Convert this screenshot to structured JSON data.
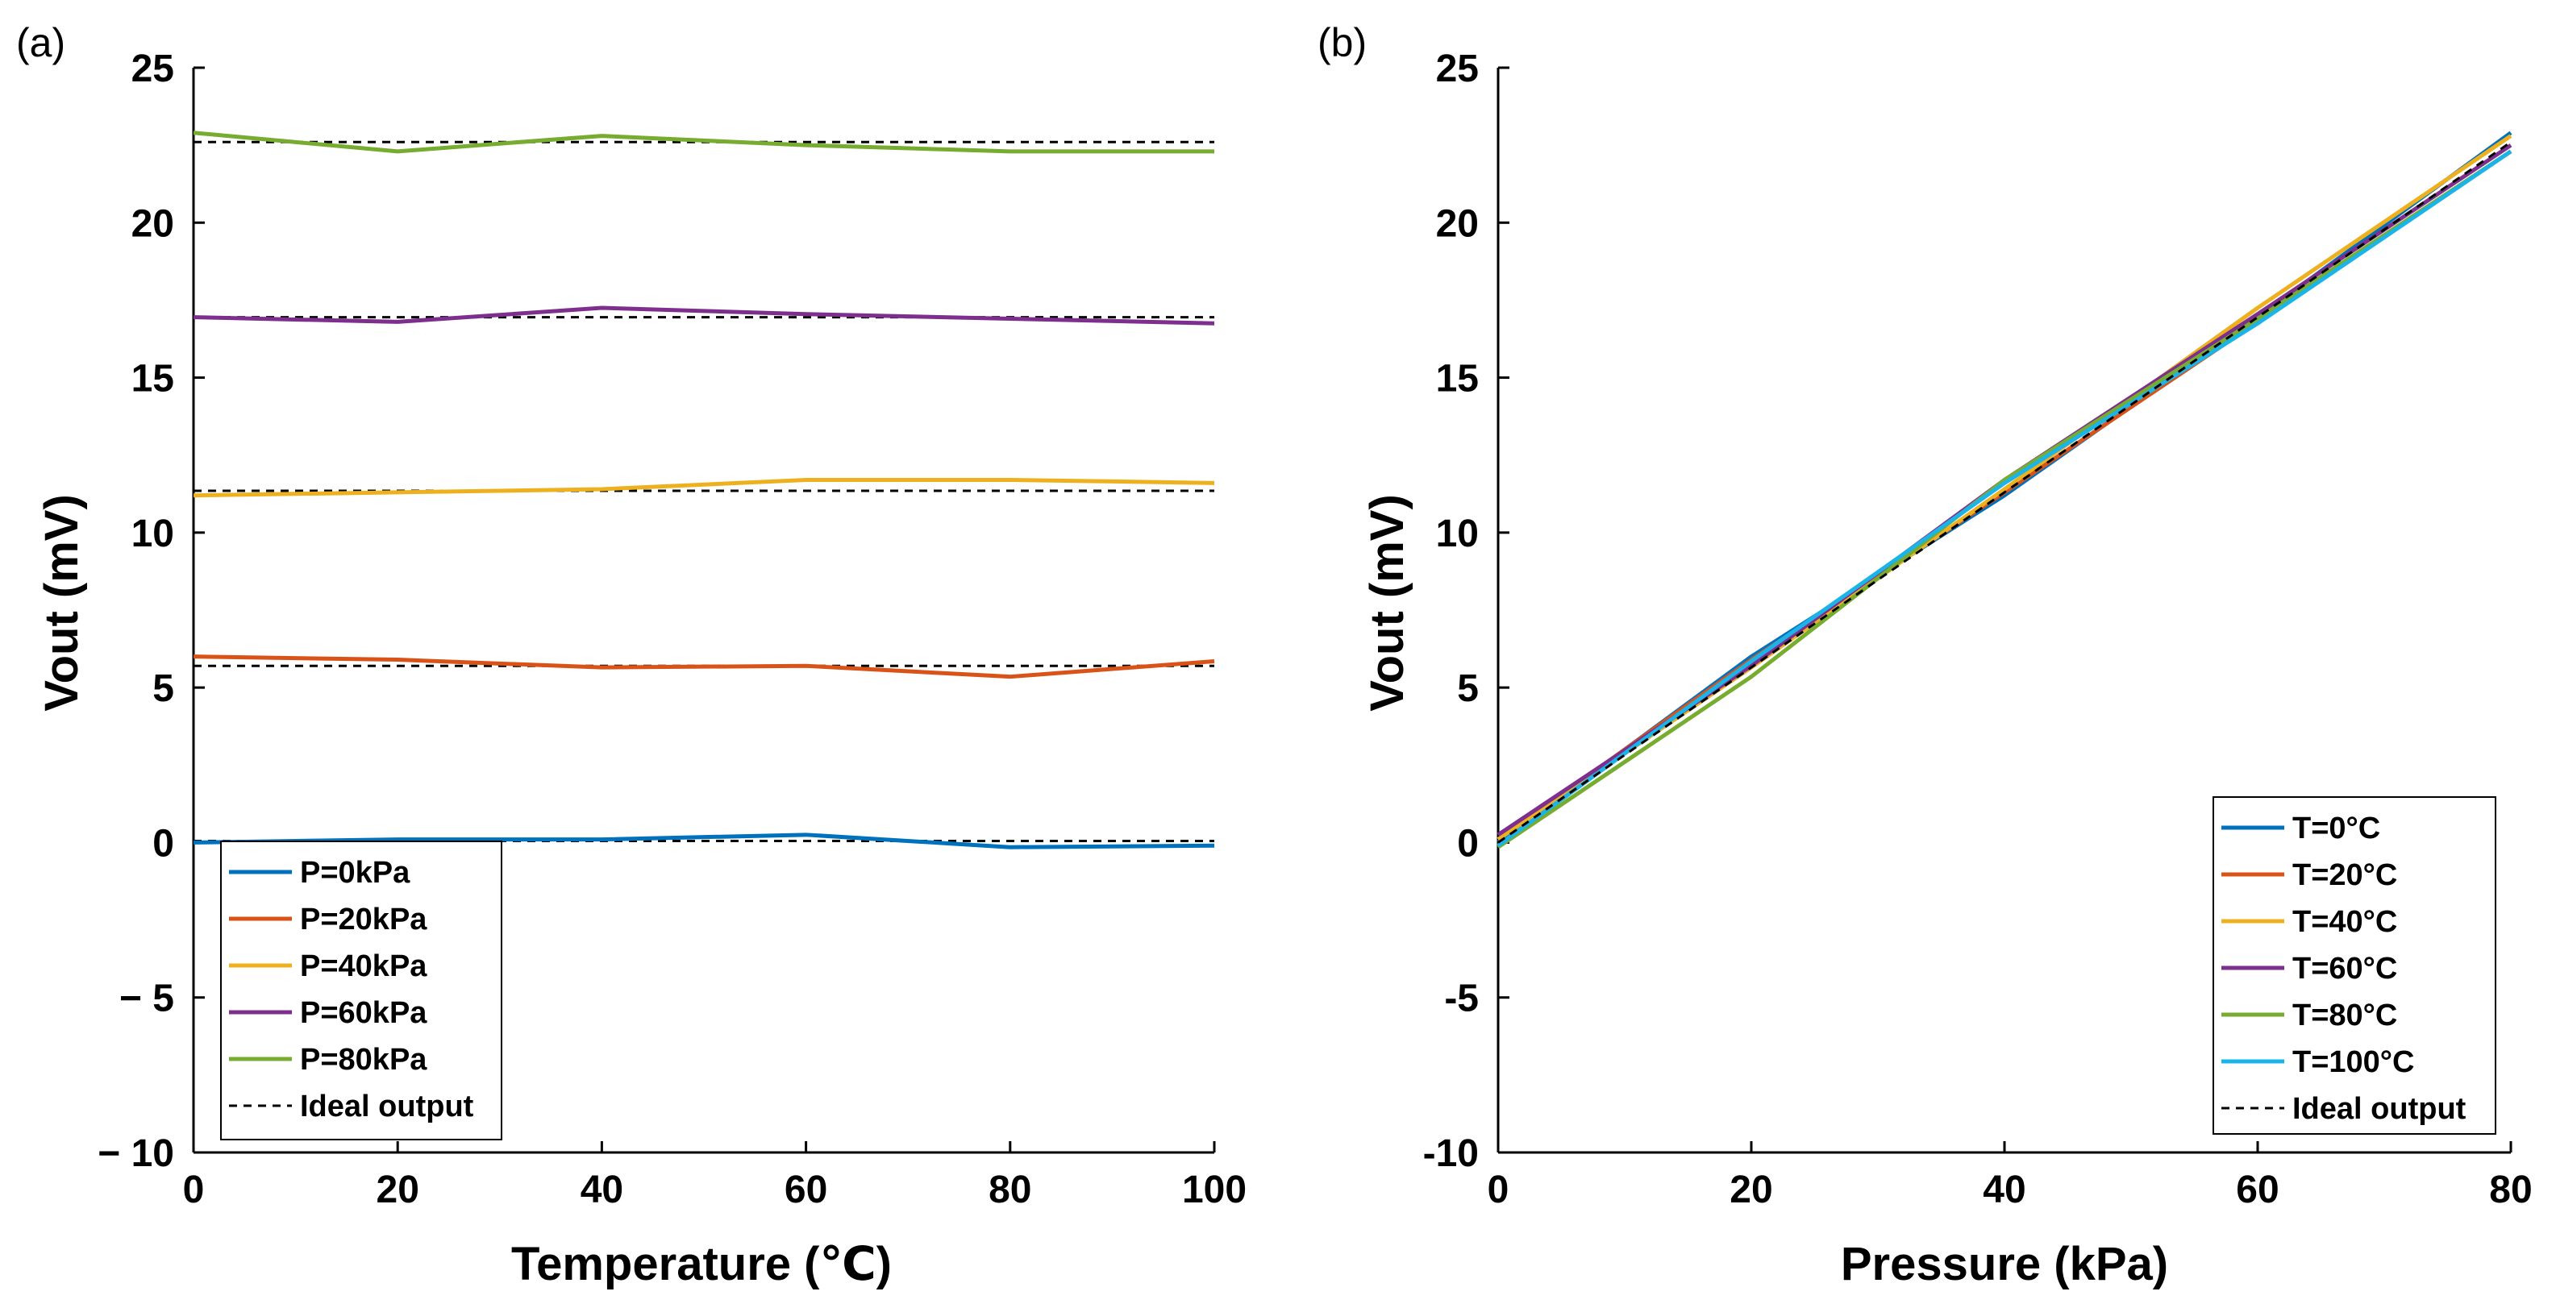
{
  "chart_data": [
    {
      "type": "line",
      "panel_label": "(a)",
      "xlabel": "Temperature (℃)",
      "ylabel": "Vout (mV)",
      "xlim": [
        0,
        100
      ],
      "ylim": [
        -10,
        25
      ],
      "xticks": [
        "0",
        "20",
        "40",
        "60",
        "80",
        "100"
      ],
      "yticks": [
        "− 10",
        "− 5",
        "0",
        "5",
        "10",
        "15",
        "20",
        "25"
      ],
      "x": [
        0,
        20,
        40,
        60,
        80,
        100
      ],
      "legend_position": "bottom-left",
      "series": [
        {
          "name": "P=0kPa",
          "color": "#0072BD",
          "values": [
            0.0,
            0.1,
            0.1,
            0.25,
            -0.15,
            -0.1
          ]
        },
        {
          "name": "P=20kPa",
          "color": "#D95319",
          "values": [
            6.0,
            5.9,
            5.65,
            5.7,
            5.35,
            5.85
          ]
        },
        {
          "name": "P=40kPa",
          "color": "#EDB120",
          "values": [
            11.2,
            11.3,
            11.4,
            11.7,
            11.7,
            11.6
          ]
        },
        {
          "name": "P=60kPa",
          "color": "#7E2F8E",
          "values": [
            16.95,
            16.8,
            17.25,
            17.05,
            16.9,
            16.75
          ]
        },
        {
          "name": "P=80kPa",
          "color": "#77AC30",
          "values": [
            22.9,
            22.3,
            22.8,
            22.5,
            22.3,
            22.3
          ]
        }
      ],
      "ideal": {
        "name": "Ideal output",
        "color": "#000000",
        "values_per_series": [
          0.05,
          5.7,
          11.35,
          16.95,
          22.6
        ]
      }
    },
    {
      "type": "line",
      "panel_label": "(b)",
      "xlabel": "Pressure (kPa)",
      "ylabel": "Vout (mV)",
      "xlim": [
        0,
        80
      ],
      "ylim": [
        -10,
        25
      ],
      "xticks": [
        "0",
        "20",
        "40",
        "60",
        "80"
      ],
      "yticks": [
        "-10",
        "-5",
        "0",
        "5",
        "10",
        "15",
        "20",
        "25"
      ],
      "x": [
        0,
        20,
        40,
        60,
        80
      ],
      "legend_position": "bottom-right",
      "series": [
        {
          "name": "T=0°C",
          "color": "#0072BD",
          "values": [
            0.0,
            6.0,
            11.2,
            16.95,
            22.9
          ]
        },
        {
          "name": "T=20°C",
          "color": "#D95319",
          "values": [
            0.1,
            5.9,
            11.3,
            16.8,
            22.3
          ]
        },
        {
          "name": "T=40°C",
          "color": "#EDB120",
          "values": [
            0.1,
            5.65,
            11.4,
            17.25,
            22.8
          ]
        },
        {
          "name": "T=60°C",
          "color": "#7E2F8E",
          "values": [
            0.25,
            5.7,
            11.7,
            17.05,
            22.5
          ]
        },
        {
          "name": "T=80°C",
          "color": "#77AC30",
          "values": [
            -0.15,
            5.35,
            11.7,
            16.9,
            22.3
          ]
        },
        {
          "name": "T=100°C",
          "color": "#1AB4E8",
          "values": [
            -0.1,
            5.85,
            11.6,
            16.75,
            22.3
          ]
        }
      ],
      "ideal": {
        "name": "Ideal output",
        "color": "#000000",
        "x": [
          0,
          80
        ],
        "values": [
          0.0,
          22.6
        ]
      }
    }
  ]
}
